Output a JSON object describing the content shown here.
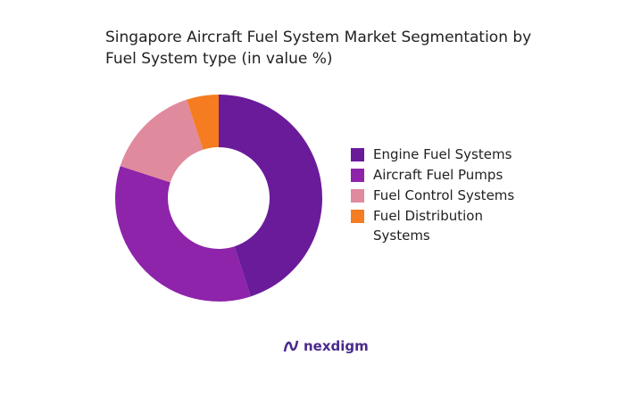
{
  "chart_data": {
    "type": "donut",
    "title": "Singapore Aircraft Fuel System Market Segmentation by Fuel System type (in value %)",
    "categories": [
      "Engine Fuel Systems",
      "Aircraft Fuel Pumps",
      "Fuel Control Systems",
      "Fuel Distribution Systems"
    ],
    "values": [
      45,
      35,
      15,
      5
    ],
    "colors": [
      "#6a1b9a",
      "#8e24aa",
      "#e08a9e",
      "#f57c20"
    ]
  },
  "logo": "nexdigm"
}
